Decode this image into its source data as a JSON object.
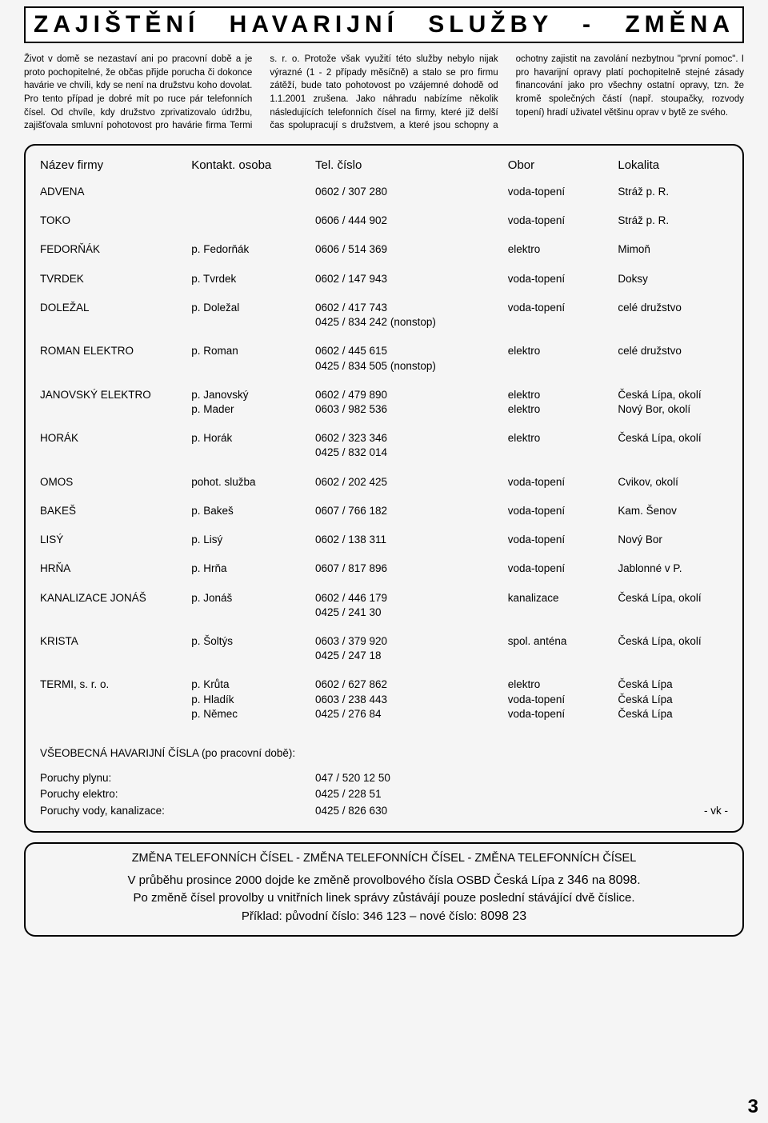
{
  "title": "ZAJIŠTĚNÍ HAVARIJNÍ SLUŽBY - ZMĚNA",
  "intro": "Život v domě se nezastaví ani po pracovní době a je proto pochopitelné, že občas přijde porucha či dokonce havárie ve chvíli, kdy se není na družstvu koho dovolat. Pro tento případ je dobré mít po ruce pár telefonních čísel. Od chvíle, kdy družstvo zprivatizovalo údržbu, zajišťovala smluvní pohotovost pro havárie firma Termi s. r. o. Protože však využití této služby nebylo nijak výrazné (1 - 2 případy měsíčně) a stalo se pro firmu zátěží, bude tato pohotovost po vzájemné dohodě od 1.1.2001 zrušena. Jako náhradu nabízíme několik následujících telefonních čísel na firmy, které již delší čas spolupracují s družstvem, a které jsou schopny a ochotny zajistit na zavolání nezbytnou \"první pomoc\". I pro havarijní opravy platí pochopitelně stejné zásady financování jako pro všechny ostatní opravy, tzn. že kromě společných částí (např. stoupačky, rozvody topení) hradí uživatel většinu oprav v bytě ze svého.",
  "headers": {
    "firm": "Název firmy",
    "contact": "Kontakt. osoba",
    "tel": "Tel. číslo",
    "obor": "Obor",
    "loc": "Lokalita"
  },
  "rows": [
    {
      "firm": "ADVENA",
      "contact": "",
      "tel": [
        "0602 / 307 280"
      ],
      "obor": [
        "voda-topení"
      ],
      "loc": [
        "Stráž p. R."
      ]
    },
    {
      "firm": "TOKO",
      "contact": "",
      "tel": [
        "0606 / 444 902"
      ],
      "obor": [
        "voda-topení"
      ],
      "loc": [
        "Stráž p. R."
      ]
    },
    {
      "firm": "FEDORŇÁK",
      "contact": "p. Fedorňák",
      "tel": [
        "0606 / 514 369"
      ],
      "obor": [
        "elektro"
      ],
      "loc": [
        "Mimoň"
      ]
    },
    {
      "firm": "TVRDEK",
      "contact": "p. Tvrdek",
      "tel": [
        "0602 / 147 943"
      ],
      "obor": [
        "voda-topení"
      ],
      "loc": [
        "Doksy"
      ]
    },
    {
      "firm": "DOLEŽAL",
      "contact": "p. Doležal",
      "tel": [
        "0602 / 417 743",
        "0425 / 834 242 (nonstop)"
      ],
      "obor": [
        "voda-topení"
      ],
      "loc": [
        "celé družstvo"
      ]
    },
    {
      "firm": "ROMAN ELEKTRO",
      "contact": "p. Roman",
      "tel": [
        "0602 / 445 615",
        "0425 / 834 505 (nonstop)"
      ],
      "obor": [
        "elektro"
      ],
      "loc": [
        "celé družstvo"
      ]
    },
    {
      "firm": "JANOVSKÝ ELEKTRO",
      "contact": [
        "p. Janovský",
        "p. Mader"
      ],
      "tel": [
        "0602 / 479 890",
        "0603 / 982 536"
      ],
      "obor": [
        "elektro",
        "elektro"
      ],
      "loc": [
        "Česká Lípa, okolí",
        "Nový Bor, okolí"
      ]
    },
    {
      "firm": "HORÁK",
      "contact": "p. Horák",
      "tel": [
        "0602 / 323 346",
        "0425 / 832 014"
      ],
      "obor": [
        "elektro"
      ],
      "loc": [
        "Česká Lípa, okolí"
      ]
    },
    {
      "firm": "OMOS",
      "contact": "pohot. služba",
      "tel": [
        "0602 / 202 425"
      ],
      "obor": [
        "voda-topení"
      ],
      "loc": [
        "Cvikov, okolí"
      ]
    },
    {
      "firm": "BAKEŠ",
      "contact": "p. Bakeš",
      "tel": [
        "0607 / 766 182"
      ],
      "obor": [
        "voda-topení"
      ],
      "loc": [
        "Kam. Šenov"
      ]
    },
    {
      "firm": "LISÝ",
      "contact": "p. Lisý",
      "tel": [
        "0602 / 138 311"
      ],
      "obor": [
        "voda-topení"
      ],
      "loc": [
        "Nový Bor"
      ]
    },
    {
      "firm": "HRŇA",
      "contact": "p. Hrňa",
      "tel": [
        "0607 / 817 896"
      ],
      "obor": [
        "voda-topení"
      ],
      "loc": [
        "Jablonné v P."
      ]
    },
    {
      "firm": "KANALIZACE JONÁŠ",
      "contact": "p. Jonáš",
      "tel": [
        "0602 / 446 179",
        "0425 / 241 30"
      ],
      "obor": [
        "kanalizace"
      ],
      "loc": [
        "Česká Lípa, okolí"
      ]
    },
    {
      "firm": "KRISTA",
      "contact": "p. Šoltýs",
      "tel": [
        "0603 / 379 920",
        "0425 / 247 18"
      ],
      "obor": [
        "spol. anténa"
      ],
      "loc": [
        "Česká Lípa, okolí"
      ]
    },
    {
      "firm": "TERMI, s. r. o.",
      "contact": [
        "p. Krůta",
        "p. Hladík",
        "p. Němec"
      ],
      "tel": [
        "0602 / 627 862",
        "0603 / 238 443",
        "0425 / 276 84"
      ],
      "obor": [
        "elektro",
        "voda-topení",
        "voda-topení"
      ],
      "loc": [
        "Česká Lípa",
        "Česká Lípa",
        "Česká Lípa"
      ]
    }
  ],
  "general": {
    "title": "VŠEOBECNÁ HAVARIJNÍ ČÍSLA (po pracovní době):",
    "items": [
      {
        "label": "Poruchy plynu:",
        "value": "047 / 520 12 50"
      },
      {
        "label": "Poruchy elektro:",
        "value": "0425 / 228 51"
      },
      {
        "label": "Poruchy vody, kanalizace:",
        "value": "0425 / 826 630"
      }
    ]
  },
  "signature": "- vk -",
  "footer": {
    "banner": "ZMĚNA TELEFONNÍCH ČÍSEL - ZMĚNA TELEFONNÍCH ČÍSEL - ZMĚNA TELEFONNÍCH ČÍSEL",
    "line1a": "V průběhu prosince 2000 dojde ke změně provolbového čísla OSBD Česká Lípa z ",
    "old": "346",
    "mid": " na ",
    "new": "8098",
    "line1b": ".",
    "line2": "Po změně čísel provolby u vnitřních linek správy zůstávájí pouze poslední stávájící dvě číslice.",
    "line3a": "Příklad: původní číslo: 346 123 – nové číslo: ",
    "example_new": "8098 23"
  },
  "page_number": "3"
}
